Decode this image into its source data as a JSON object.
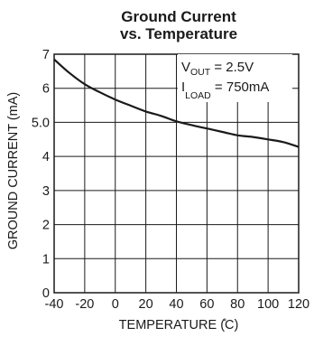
{
  "chart_data": {
    "type": "line",
    "title_line1": "Ground Current",
    "title_line2": "vs. Temperature",
    "xlabel": "TEMPERATURE (̊C)",
    "ylabel": "GROUND CURRENT (mA)",
    "xlim": [
      -40,
      120
    ],
    "ylim": [
      0,
      7
    ],
    "x_ticks": [
      "-40",
      "-20",
      "0",
      "20",
      "40",
      "60",
      "80",
      "100",
      "120"
    ],
    "y_ticks": [
      "0",
      "1",
      "2",
      "3",
      "4",
      "5.0",
      "6",
      "7"
    ],
    "grid": true,
    "annotation": {
      "vout_prefix": "V",
      "vout_sub": "OUT",
      "vout_value": " = 2.5V",
      "iload_prefix": "I",
      "iload_sub": "LOAD",
      "iload_value": " = 750mA"
    },
    "series": [
      {
        "x": [
          -40,
          -30,
          -20,
          -10,
          0,
          10,
          20,
          30,
          40,
          50,
          60,
          70,
          80,
          90,
          100,
          110,
          120
        ],
        "y": [
          6.85,
          6.45,
          6.12,
          5.88,
          5.67,
          5.49,
          5.32,
          5.19,
          5.03,
          4.92,
          4.82,
          4.72,
          4.62,
          4.57,
          4.5,
          4.42,
          4.28
        ]
      }
    ],
    "colors": {
      "line": "#1a1a1a",
      "grid": "#1a1a1a",
      "frame": "#1a1a1a"
    }
  }
}
